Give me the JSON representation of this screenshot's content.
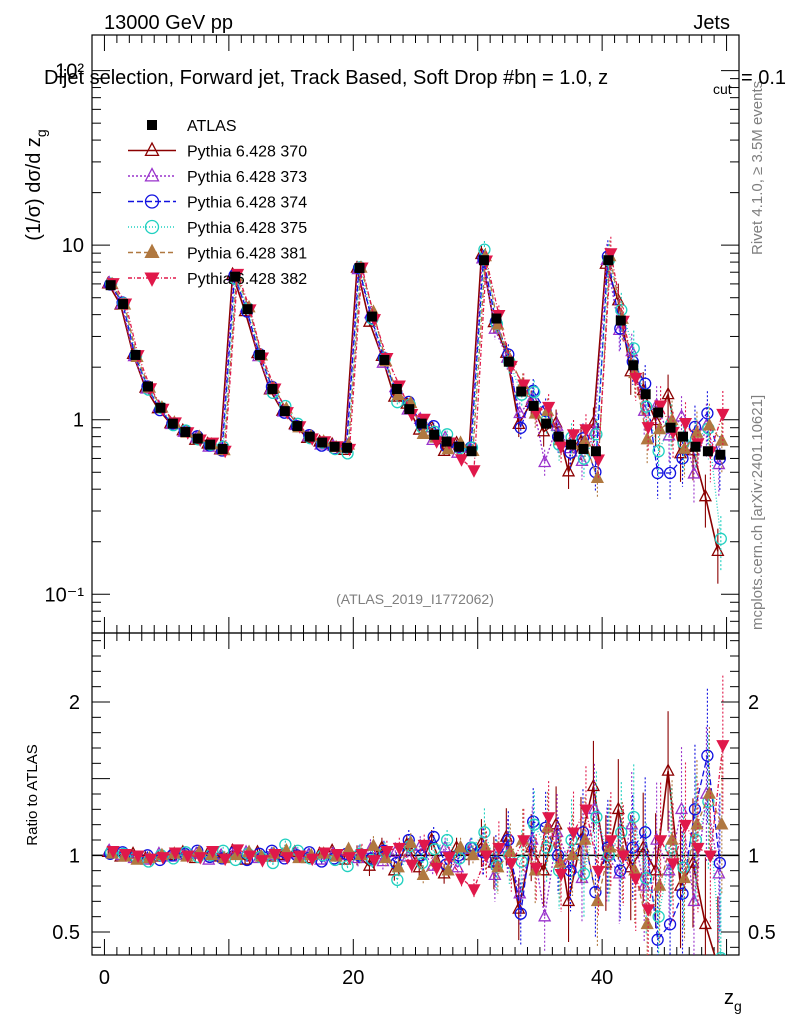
{
  "header": {
    "energy_label": "13000 GeV pp",
    "process_label": "Jets"
  },
  "title": "Dijet selection, Forward jet, Track Based, Soft Drop #b",
  "title_extra": {
    "eta_part": "η = 1.0, z",
    "cut_sub": "cut",
    "tail": " = 0.1"
  },
  "side_labels": {
    "rivet": "Rivet 4.1.0, ≥ 3.5M events",
    "mcplots": "mcplots.cern.ch [arXiv:2401.10621]"
  },
  "watermark": "(ATLAS_2019_I1772062)",
  "colors": {
    "ATLAS": "#000000",
    "s370": "#8b0000",
    "s373": "#9932cc",
    "s374": "#1010e0",
    "s375": "#20d0c0",
    "s381": "#b07840",
    "s382": "#e0184a"
  },
  "chart_data": {
    "type": "line",
    "xlabel": "z_g",
    "ylabel_main": "(1/σ) dσ/d z_g",
    "ylabel_ratio": "Ratio to ATLAS",
    "xlim": [
      -1,
      51
    ],
    "ylim_main": [
      0.06,
      160
    ],
    "ylim_ratio": [
      0.35,
      2.45
    ],
    "yscale_main": "log",
    "x_ticks": [
      "0",
      "20",
      "40"
    ],
    "y_ticks_main": [
      "10⁻¹",
      "1",
      "10",
      "10²"
    ],
    "y_ticks_ratio": [
      "0.5",
      "1",
      "2"
    ],
    "x": [
      0.5,
      1.5,
      2.5,
      3.5,
      4.5,
      5.5,
      6.5,
      7.5,
      8.5,
      9.5,
      10.5,
      11.5,
      12.5,
      13.5,
      14.5,
      15.5,
      16.5,
      17.5,
      18.5,
      19.5,
      20.5,
      21.5,
      22.5,
      23.5,
      24.5,
      25.5,
      26.5,
      27.5,
      28.5,
      29.5,
      30.5,
      31.5,
      32.5,
      33.5,
      34.5,
      35.5,
      36.5,
      37.5,
      38.5,
      39.5,
      40.5,
      41.5,
      42.5,
      43.5,
      44.5,
      45.5,
      46.5,
      47.5,
      48.5,
      49.5
    ],
    "data": {
      "name": "ATLAS",
      "values": [
        5.9,
        4.6,
        2.35,
        1.55,
        1.17,
        0.95,
        0.85,
        0.78,
        0.72,
        0.68,
        6.6,
        4.3,
        2.35,
        1.5,
        1.12,
        0.92,
        0.8,
        0.74,
        0.7,
        0.69,
        7.4,
        3.9,
        2.2,
        1.5,
        1.15,
        0.95,
        0.82,
        0.75,
        0.7,
        0.66,
        8.2,
        3.8,
        2.15,
        1.45,
        1.2,
        0.95,
        0.8,
        0.72,
        0.68,
        0.66,
        8.2,
        3.7,
        2.05,
        1.4,
        1.1,
        0.9,
        0.8,
        0.7,
        0.66,
        0.63
      ]
    },
    "series": [
      {
        "name": "Pythia 6.428 370",
        "key": "s370",
        "marker": "triangle-open",
        "dash": "",
        "ratio": [
          1.02,
          0.99,
          1.01,
          0.98,
          0.99,
          1.0,
          1.02,
          0.98,
          1.01,
          0.99,
          1.03,
          0.97,
          1.02,
          0.99,
          1.0,
          1.02,
          0.98,
          1.01,
          1.03,
          0.97,
          1.0,
          0.93,
          1.05,
          0.9,
          1.07,
          0.92,
          1.1,
          0.88,
          1.05,
          1.0,
          1.08,
          0.95,
          1.12,
          0.65,
          1.05,
          0.9,
          1.2,
          0.7,
          1.1,
          1.45,
          0.95,
          1.3,
          0.92,
          1.05,
          0.9,
          1.55,
          0.8,
          0.95,
          0.55,
          0.28
        ]
      },
      {
        "name": "Pythia 6.428 373",
        "key": "s373",
        "marker": "triangle-open",
        "dash": "2,2",
        "ratio": [
          1.03,
          1.0,
          0.98,
          0.97,
          1.01,
          0.99,
          1.0,
          1.01,
          0.97,
          1.0,
          1.01,
          1.02,
          0.98,
          1.0,
          0.99,
          1.01,
          1.0,
          0.97,
          1.01,
          1.0,
          0.98,
          1.04,
          0.96,
          1.02,
          0.99,
          1.06,
          0.93,
          1.05,
          0.92,
          1.04,
          1.02,
          0.87,
          1.05,
          0.75,
          1.1,
          0.6,
          1.15,
          0.95,
          0.85,
          1.3,
          1.0,
          0.88,
          1.2,
          0.8,
          1.1,
          0.9,
          1.3,
          0.7,
          1.4,
          0.88
        ]
      },
      {
        "name": "Pythia 6.428 374",
        "key": "s374",
        "marker": "circle-open",
        "dash": "6,3",
        "ratio": [
          1.01,
          1.02,
          0.99,
          1.0,
          0.97,
          1.0,
          1.01,
          1.03,
          0.99,
          0.98,
          1.02,
          0.97,
          1.01,
          1.03,
          0.98,
          1.0,
          1.02,
          0.96,
          0.98,
          1.01,
          1.0,
          0.98,
          1.03,
          0.95,
          1.1,
          1.0,
          1.12,
          0.94,
          1.0,
          1.05,
          1.02,
          0.96,
          1.1,
          0.62,
          1.22,
          1.18,
          1.0,
          0.9,
          1.15,
          0.76,
          1.05,
          0.9,
          1.05,
          1.15,
          0.45,
          0.55,
          0.75,
          1.3,
          1.65,
          0.95
        ]
      },
      {
        "name": "Pythia 6.428 375",
        "key": "s375",
        "marker": "circle-open",
        "dash": "1,2",
        "ratio": [
          1.02,
          1.01,
          0.99,
          0.96,
          1.0,
          0.98,
          1.02,
          0.99,
          1.0,
          1.03,
          0.97,
          1.01,
          0.99,
          0.95,
          1.07,
          1.03,
          0.98,
          1.0,
          0.97,
          0.93,
          1.01,
          0.97,
          1.02,
          0.84,
          1.06,
          0.95,
          1.04,
          1.1,
          0.98,
          1.05,
          1.15,
          0.93,
          1.0,
          0.96,
          1.2,
          1.05,
          0.9,
          1.1,
          0.88,
          1.25,
          1.0,
          1.15,
          1.25,
          0.85,
          0.6,
          1.05,
          0.92,
          1.1,
          1.35,
          0.33
        ]
      },
      {
        "name": "Pythia 6.428 381",
        "key": "s381",
        "marker": "triangle-filled",
        "dash": "5,3",
        "ratio": [
          1.01,
          0.99,
          0.97,
          0.98,
          1.0,
          1.01,
          0.99,
          1.02,
          1.0,
          0.98,
          1.0,
          1.02,
          0.99,
          1.01,
          1.03,
          0.98,
          1.0,
          1.01,
          0.99,
          1.04,
          1.0,
          1.06,
          0.98,
          0.92,
          1.08,
          0.87,
          0.96,
          0.9,
          1.05,
          1.0,
          1.05,
          0.92,
          1.02,
          1.1,
          0.9,
          1.18,
          0.95,
          1.0,
          1.1,
          0.7,
          1.05,
          1.02,
          0.9,
          0.55,
          0.8,
          1.1,
          0.85,
          1.2,
          1.4,
          1.2
        ]
      },
      {
        "name": "Pythia 6.428 382",
        "key": "s382",
        "marker": "triangle-down-filled",
        "dash": "4,2,1,2",
        "ratio": [
          1.03,
          1.01,
          1.0,
          0.98,
          0.99,
          1.02,
          1.0,
          0.99,
          1.03,
          0.98,
          1.04,
          1.0,
          0.97,
          1.01,
          0.99,
          1.0,
          0.98,
          1.02,
          1.01,
          0.99,
          1.01,
          0.97,
          1.03,
          1.05,
          0.94,
          1.07,
          0.92,
          0.99,
          0.85,
          0.78,
          1.0,
          1.05,
          0.95,
          1.1,
          0.92,
          1.25,
          0.88,
          1.15,
          1.3,
          0.9,
          1.1,
          1.0,
          0.85,
          0.65,
          1.1,
          0.95,
          1.2,
          1.05,
          1.0,
          1.72
        ]
      }
    ]
  }
}
